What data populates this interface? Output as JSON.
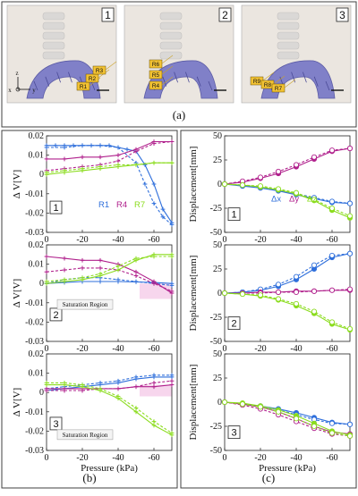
{
  "colors": {
    "blue": "#2f6fdb",
    "magenta": "#b0208c",
    "green": "#8bdc1e",
    "band": "#f4c4e6",
    "robot": "#8080c8",
    "panel_border": "#404040"
  },
  "panel_a": {
    "label": "(a)",
    "photos": [
      {
        "index": "1",
        "sensors": [
          "R1",
          "R2",
          "R3"
        ]
      },
      {
        "index": "2",
        "sensors": [
          "R6",
          "R5",
          "R4"
        ]
      },
      {
        "index": "3",
        "sensors": [
          "R9",
          "R8",
          "R7"
        ]
      }
    ],
    "axes": {
      "z": "z",
      "x": "x",
      "y": "y"
    }
  },
  "panel_b": {
    "label": "(b)"
  },
  "panel_c": {
    "label": "(c)"
  },
  "chart_data": [
    {
      "type": "line",
      "panel": "b",
      "index": "1",
      "ylabel": "Δ V[V]",
      "xlim": [
        0,
        -70
      ],
      "ylim": [
        -0.03,
        0.02
      ],
      "xticks": [
        0,
        -20,
        -40,
        -60
      ],
      "yticks": [
        0.02,
        0.01,
        0,
        -0.01,
        -0.02,
        -0.03
      ],
      "legend": [
        "R1",
        "R4",
        "R7"
      ],
      "series": [
        {
          "name": "R1",
          "color": "blue",
          "x": [
            0,
            -5,
            -10,
            -15,
            -20,
            -25,
            -30,
            -35,
            -40,
            -45,
            -50,
            -55,
            -60,
            -65,
            -70
          ],
          "y": [
            0.015,
            0.015,
            0.015,
            0.015,
            0.015,
            0.015,
            0.015,
            0.015,
            0.014,
            0.013,
            0.012,
            0.005,
            -0.005,
            -0.018,
            -0.025
          ]
        },
        {
          "name": "R1",
          "color": "blue",
          "x": [
            0,
            -10,
            -20,
            -30,
            -40,
            -50,
            -55,
            -60,
            -65,
            -70
          ],
          "y": [
            0.014,
            0.014,
            0.015,
            0.015,
            0.014,
            0.006,
            -0.005,
            -0.015,
            -0.022,
            -0.026
          ]
        },
        {
          "name": "R4",
          "color": "magenta",
          "x": [
            0,
            -10,
            -20,
            -30,
            -40,
            -50,
            -60,
            -70
          ],
          "y": [
            0.008,
            0.008,
            0.009,
            0.009,
            0.01,
            0.013,
            0.017,
            0.017
          ]
        },
        {
          "name": "R4",
          "color": "magenta",
          "x": [
            0,
            -10,
            -20,
            -30,
            -40,
            -50,
            -60,
            -70
          ],
          "y": [
            0.002,
            0.003,
            0.004,
            0.005,
            0.007,
            0.012,
            0.016,
            0.017
          ]
        },
        {
          "name": "R7",
          "color": "green",
          "x": [
            0,
            -10,
            -20,
            -30,
            -40,
            -50,
            -60,
            -70
          ],
          "y": [
            0.0,
            0.001,
            0.002,
            0.003,
            0.004,
            0.005,
            0.006,
            0.006
          ]
        },
        {
          "name": "R7",
          "color": "green",
          "x": [
            0,
            -10,
            -20,
            -30,
            -40,
            -50,
            -60,
            -70
          ],
          "y": [
            0.001,
            0.002,
            0.003,
            0.004,
            0.005,
            0.005,
            0.006,
            0.006
          ]
        }
      ]
    },
    {
      "type": "line",
      "panel": "b",
      "index": "2",
      "ylabel": "Δ V[V]",
      "xlim": [
        0,
        -70
      ],
      "ylim": [
        -0.03,
        0.02
      ],
      "xticks": [
        0,
        -20,
        -40,
        -60
      ],
      "yticks": [
        0.02,
        0.01,
        0,
        -0.01,
        -0.02,
        -0.03
      ],
      "annotation": "Saturation Region",
      "series": [
        {
          "name": "R1",
          "color": "blue",
          "x": [
            0,
            -10,
            -20,
            -30,
            -40,
            -50,
            -60,
            -70
          ],
          "y": [
            0.0,
            0.0005,
            0.001,
            0.001,
            0.001,
            0.0008,
            0.0005,
            0.0
          ]
        },
        {
          "name": "R1",
          "color": "blue",
          "x": [
            0,
            -10,
            -20,
            -30,
            -40,
            -50,
            -60,
            -70
          ],
          "y": [
            0.0,
            0.002,
            0.003,
            0.003,
            0.002,
            0.001,
            0.0,
            -0.001
          ]
        },
        {
          "name": "R4",
          "color": "magenta",
          "x": [
            0,
            -10,
            -20,
            -30,
            -40,
            -50,
            -60,
            -70
          ],
          "y": [
            0.014,
            0.013,
            0.012,
            0.012,
            0.01,
            0.006,
            0.001,
            -0.005
          ]
        },
        {
          "name": "R4",
          "color": "magenta",
          "x": [
            0,
            -10,
            -20,
            -30,
            -40,
            -50,
            -60,
            -70
          ],
          "y": [
            0.006,
            0.007,
            0.008,
            0.008,
            0.007,
            0.004,
            0.0,
            -0.004
          ]
        },
        {
          "name": "R7",
          "color": "green",
          "x": [
            0,
            -10,
            -20,
            -30,
            -40,
            -50,
            -60,
            -70
          ],
          "y": [
            0.0,
            0.001,
            0.002,
            0.004,
            0.007,
            0.012,
            0.015,
            0.015
          ]
        },
        {
          "name": "R7",
          "color": "green",
          "x": [
            0,
            -10,
            -20,
            -30,
            -40,
            -50,
            -60,
            -70
          ],
          "y": [
            0.001,
            0.002,
            0.003,
            0.005,
            0.009,
            0.013,
            0.014,
            0.014
          ]
        }
      ]
    },
    {
      "type": "line",
      "panel": "b",
      "index": "3",
      "ylabel": "Δ V[V]",
      "xlabel": "Pressure (kPa)",
      "xlim": [
        0,
        -70
      ],
      "ylim": [
        -0.03,
        0.02
      ],
      "xticks": [
        0,
        -20,
        -40,
        -60
      ],
      "yticks": [
        0.02,
        0.01,
        0,
        -0.01,
        -0.02,
        -0.03
      ],
      "annotation": "Saturation Region",
      "series": [
        {
          "name": "R1",
          "color": "blue",
          "x": [
            0,
            -10,
            -20,
            -30,
            -40,
            -50,
            -60,
            -70
          ],
          "y": [
            0.001,
            0.002,
            0.003,
            0.004,
            0.005,
            0.007,
            0.008,
            0.008
          ]
        },
        {
          "name": "R1",
          "color": "blue",
          "x": [
            0,
            -10,
            -20,
            -30,
            -40,
            -50,
            -60,
            -70
          ],
          "y": [
            0.002,
            0.003,
            0.004,
            0.005,
            0.006,
            0.008,
            0.009,
            0.009
          ]
        },
        {
          "name": "R4",
          "color": "magenta",
          "x": [
            0,
            -10,
            -20,
            -30,
            -40,
            -50,
            -60,
            -70
          ],
          "y": [
            0.002,
            0.002,
            0.002,
            0.002,
            0.002,
            0.003,
            0.003,
            0.004
          ]
        },
        {
          "name": "R4",
          "color": "magenta",
          "x": [
            0,
            -10,
            -20,
            -30,
            -40,
            -50,
            -60,
            -70
          ],
          "y": [
            0.001,
            0.001,
            0.001,
            0.002,
            0.002,
            0.003,
            0.005,
            0.006
          ]
        },
        {
          "name": "R7",
          "color": "green",
          "x": [
            0,
            -10,
            -20,
            -30,
            -40,
            -50,
            -60,
            -70
          ],
          "y": [
            0.004,
            0.004,
            0.003,
            0.001,
            -0.003,
            -0.01,
            -0.017,
            -0.022
          ]
        },
        {
          "name": "R7",
          "color": "green",
          "x": [
            0,
            -10,
            -20,
            -30,
            -40,
            -50,
            -60,
            -70
          ],
          "y": [
            0.005,
            0.005,
            0.004,
            0.002,
            -0.002,
            -0.008,
            -0.015,
            -0.021
          ]
        }
      ]
    },
    {
      "type": "line",
      "panel": "c",
      "index": "1",
      "ylabel": "Displacement[mm]",
      "xlim": [
        0,
        -70
      ],
      "ylim": [
        -50,
        50
      ],
      "xticks": [
        0,
        -20,
        -40,
        -60
      ],
      "yticks": [
        50,
        25,
        0,
        -25,
        -50
      ],
      "legend": [
        "Δx",
        "Δy",
        "Δz"
      ],
      "series": [
        {
          "name": "Δx",
          "color": "blue",
          "x": [
            0,
            -10,
            -20,
            -30,
            -40,
            -50,
            -60,
            -70
          ],
          "y": [
            0,
            -2,
            -4,
            -7,
            -11,
            -15,
            -19,
            -20
          ]
        },
        {
          "name": "Δx",
          "color": "blue",
          "x": [
            0,
            -10,
            -20,
            -30,
            -40,
            -50,
            -60,
            -70
          ],
          "y": [
            0,
            -1,
            -3,
            -6,
            -10,
            -14,
            -18,
            -20
          ]
        },
        {
          "name": "Δy",
          "color": "magenta",
          "x": [
            0,
            -10,
            -20,
            -30,
            -40,
            -50,
            -60,
            -70
          ],
          "y": [
            0,
            2,
            6,
            11,
            18,
            26,
            34,
            37
          ]
        },
        {
          "name": "Δy",
          "color": "magenta",
          "x": [
            0,
            -10,
            -20,
            -30,
            -40,
            -50,
            -60,
            -70
          ],
          "y": [
            0,
            3,
            7,
            13,
            20,
            28,
            35,
            37
          ]
        },
        {
          "name": "Δz",
          "color": "green",
          "x": [
            0,
            -10,
            -20,
            -30,
            -40,
            -50,
            -60,
            -70
          ],
          "y": [
            0,
            -1,
            -3,
            -6,
            -10,
            -17,
            -27,
            -35
          ]
        },
        {
          "name": "Δz",
          "color": "green",
          "x": [
            0,
            -10,
            -20,
            -30,
            -40,
            -50,
            -60,
            -70
          ],
          "y": [
            0,
            -1,
            -2,
            -5,
            -9,
            -16,
            -25,
            -33
          ]
        }
      ]
    },
    {
      "type": "line",
      "panel": "c",
      "index": "2",
      "ylabel": "Displacement[mm]",
      "xlim": [
        0,
        -70
      ],
      "ylim": [
        -50,
        50
      ],
      "xticks": [
        0,
        -20,
        -40,
        -60
      ],
      "yticks": [
        50,
        25,
        0,
        -25,
        -50
      ],
      "series": [
        {
          "name": "Δx",
          "color": "blue",
          "x": [
            0,
            -10,
            -20,
            -30,
            -40,
            -50,
            -60,
            -70
          ],
          "y": [
            0,
            1,
            3,
            7,
            14,
            25,
            37,
            41
          ]
        },
        {
          "name": "Δx",
          "color": "blue",
          "x": [
            0,
            -10,
            -20,
            -30,
            -40,
            -50,
            -60,
            -70
          ],
          "y": [
            0,
            1,
            4,
            9,
            17,
            29,
            39,
            41
          ]
        },
        {
          "name": "Δy",
          "color": "magenta",
          "x": [
            0,
            -10,
            -20,
            -30,
            -40,
            -50,
            -60,
            -70
          ],
          "y": [
            0,
            0,
            1,
            1,
            2,
            2,
            3,
            3
          ]
        },
        {
          "name": "Δy",
          "color": "magenta",
          "x": [
            0,
            -10,
            -20,
            -30,
            -40,
            -50,
            -60,
            -70
          ],
          "y": [
            0,
            0,
            0,
            1,
            1,
            2,
            3,
            4
          ]
        },
        {
          "name": "Δz",
          "color": "green",
          "x": [
            0,
            -10,
            -20,
            -30,
            -40,
            -50,
            -60,
            -70
          ],
          "y": [
            0,
            -1,
            -3,
            -7,
            -13,
            -21,
            -32,
            -38
          ]
        },
        {
          "name": "Δz",
          "color": "green",
          "x": [
            0,
            -10,
            -20,
            -30,
            -40,
            -50,
            -60,
            -70
          ],
          "y": [
            0,
            -1,
            -2,
            -6,
            -11,
            -19,
            -30,
            -37
          ]
        }
      ]
    },
    {
      "type": "line",
      "panel": "c",
      "index": "3",
      "ylabel": "Displacement[mm]",
      "xlabel": "Pressure (kPa)",
      "xlim": [
        0,
        -70
      ],
      "ylim": [
        -50,
        50
      ],
      "xticks": [
        0,
        -20,
        -40,
        -60
      ],
      "yticks": [
        50,
        25,
        0,
        -25,
        -50
      ],
      "series": [
        {
          "name": "Δx",
          "color": "blue",
          "x": [
            0,
            -10,
            -20,
            -30,
            -40,
            -50,
            -60,
            -70
          ],
          "y": [
            0,
            -2,
            -4,
            -7,
            -11,
            -16,
            -21,
            -23
          ]
        },
        {
          "name": "Δx",
          "color": "blue",
          "x": [
            0,
            -10,
            -20,
            -30,
            -40,
            -50,
            -60,
            -70
          ],
          "y": [
            0,
            -2,
            -5,
            -8,
            -13,
            -18,
            -22,
            -23
          ]
        },
        {
          "name": "Δy",
          "color": "magenta",
          "x": [
            0,
            -10,
            -20,
            -30,
            -40,
            -50,
            -60,
            -70
          ],
          "y": [
            0,
            -2,
            -5,
            -10,
            -17,
            -25,
            -31,
            -33
          ]
        },
        {
          "name": "Δy",
          "color": "magenta",
          "x": [
            0,
            -10,
            -20,
            -30,
            -40,
            -50,
            -60,
            -70
          ],
          "y": [
            0,
            -3,
            -7,
            -13,
            -20,
            -27,
            -33,
            -35
          ]
        },
        {
          "name": "Δz",
          "color": "green",
          "x": [
            0,
            -10,
            -20,
            -30,
            -40,
            -50,
            -60,
            -70
          ],
          "y": [
            0,
            -1,
            -4,
            -8,
            -14,
            -22,
            -30,
            -34
          ]
        },
        {
          "name": "Δz",
          "color": "green",
          "x": [
            0,
            -10,
            -20,
            -30,
            -40,
            -50,
            -60,
            -70
          ],
          "y": [
            0,
            -2,
            -5,
            -10,
            -17,
            -25,
            -32,
            -35
          ]
        }
      ]
    }
  ]
}
